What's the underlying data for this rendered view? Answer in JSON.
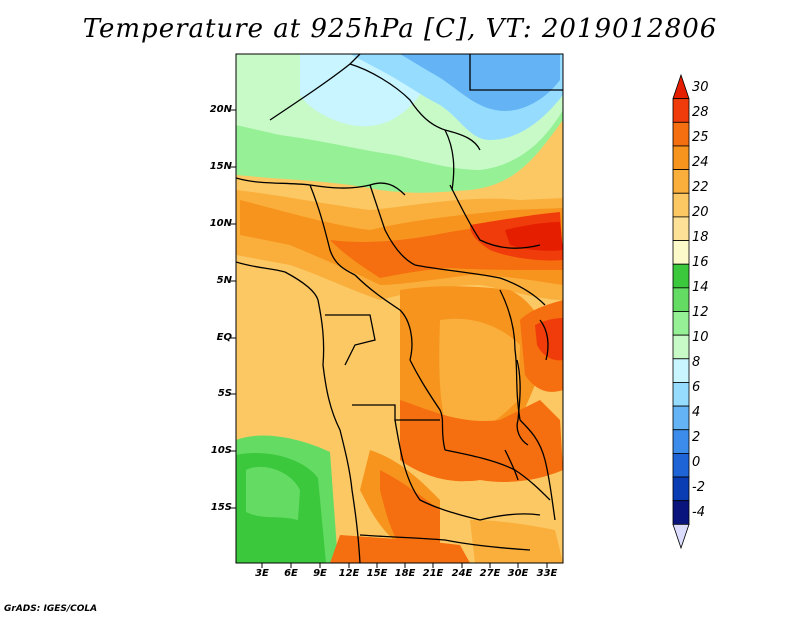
{
  "title": "Temperature at 925hPa [C], VT: 2019012806",
  "footer": "GrADS: IGES/COLA",
  "lat_labels": [
    "20N",
    "15N",
    "10N",
    "5N",
    "EQ",
    "5S",
    "10S",
    "15S"
  ],
  "lon_labels": [
    "3E",
    "6E",
    "9E",
    "12E",
    "15E",
    "18E",
    "21E",
    "24E",
    "27E",
    "30E",
    "33E"
  ],
  "colorbar": {
    "labels": [
      "30",
      "28",
      "25",
      "24",
      "22",
      "20",
      "18",
      "16",
      "14",
      "12",
      "10",
      "8",
      "6",
      "4",
      "2",
      "0",
      "-2",
      "-4"
    ],
    "colors": [
      "#e61e00",
      "#f03c0a",
      "#f56e0f",
      "#f7941d",
      "#faaf3c",
      "#fcc864",
      "#fce196",
      "#fcfac8",
      "#3cc83c",
      "#64dc64",
      "#96f096",
      "#c8fac8",
      "#c8f5ff",
      "#96dcff",
      "#64b4f5",
      "#3c8ceb",
      "#1e64d7",
      "#0a3cb4",
      "#0a147d",
      "#dcdcff"
    ]
  }
}
